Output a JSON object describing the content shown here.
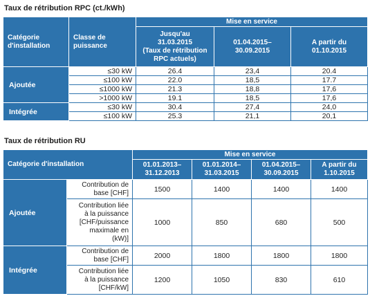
{
  "rpc": {
    "title": "Taux de rétribution RPC (ct./kWh)",
    "col_category": "Catégorie\nd'installation",
    "col_class": "Classe de\npuissance",
    "col_group": "Mise en service",
    "periods": [
      "Jusqu'au\n31.03.2015\n(Taux de rétribution\nRPC actuels)",
      "01.04.2015–\n30.09.2015",
      "A partir du\n01.10.2015"
    ],
    "groups": [
      {
        "category": "Ajoutée",
        "rows": [
          {
            "class": "≤30 kW",
            "values": [
              "26.4",
              "23,4",
              "20.4"
            ]
          },
          {
            "class": "≤100 kW",
            "values": [
              "22.0",
              "18,5",
              "17.7"
            ]
          },
          {
            "class": "≤1000 kW",
            "values": [
              "21.3",
              "18,8",
              "17,6"
            ]
          },
          {
            "class": ">1000 kW",
            "values": [
              "19.1",
              "18,5",
              "17,6"
            ]
          }
        ]
      },
      {
        "category": "Intégrée",
        "rows": [
          {
            "class": "≤30 kW",
            "values": [
              "30.4",
              "27,4",
              "24,0"
            ]
          },
          {
            "class": "≤100 kW",
            "values": [
              "25.3",
              "21,1",
              "20,1"
            ]
          }
        ]
      }
    ]
  },
  "ru": {
    "title": "Taux de rétribution RU",
    "col_category": "Catégorie d'installation",
    "col_group": "Mise en service",
    "periods": [
      "01.01.2013–\n31.12.2013",
      "01.01.2014–\n31.03.2015",
      "01.04.2015–\n30.09.2015",
      "A partir du\n1.10.2015"
    ],
    "groups": [
      {
        "category": "Ajoutée",
        "rows": [
          {
            "label": "Contribution de\nbase [CHF]",
            "values": [
              "1500",
              "1400",
              "1400",
              "1400"
            ]
          },
          {
            "label": "Contribution liée\nà la puissance\n[CHF/puissance\nmaximale en\n(kW)]",
            "values": [
              "1000",
              "850",
              "680",
              "500"
            ]
          }
        ]
      },
      {
        "category": "Intégrée",
        "rows": [
          {
            "label": "Contribution de\nbase [CHF]",
            "values": [
              "2000",
              "1800",
              "1800",
              "1800"
            ]
          },
          {
            "label": "Contribution liée\nà la puissance\n[CHF/kW]",
            "values": [
              "1200",
              "1050",
              "830",
              "610"
            ]
          }
        ]
      }
    ]
  }
}
